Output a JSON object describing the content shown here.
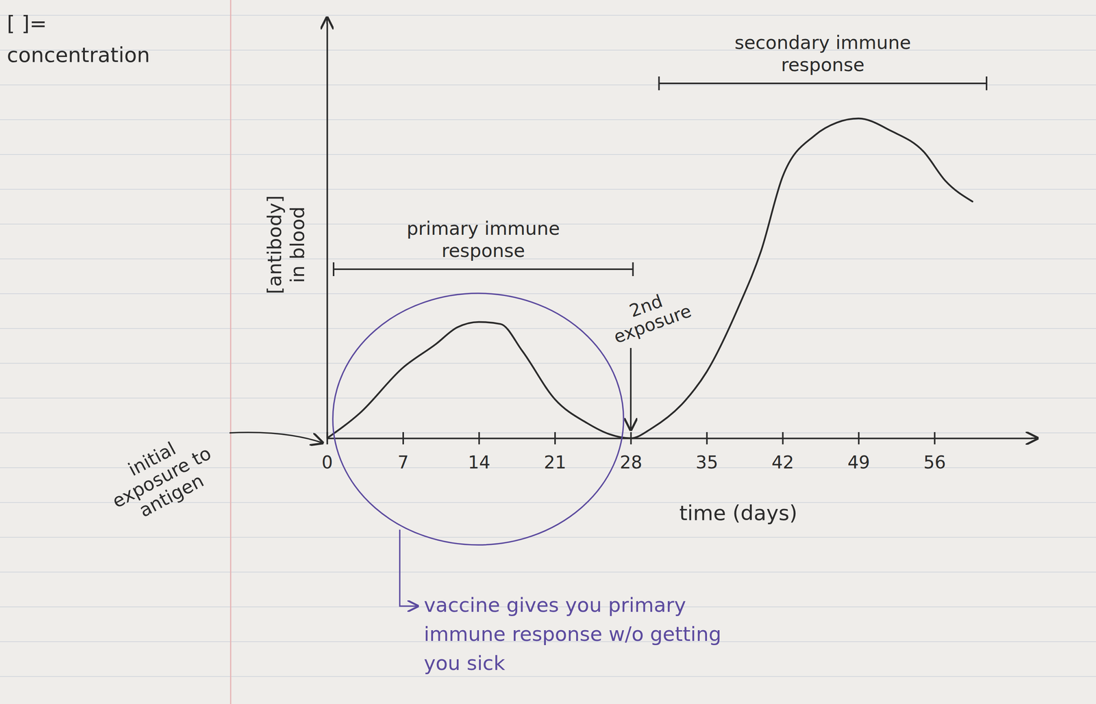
{
  "chart_data": {
    "type": "line",
    "x_label": "time (days)",
    "y_label": "[antibody] in blood",
    "x": [
      0,
      3,
      7,
      10,
      12,
      14,
      16,
      18,
      21,
      24,
      26,
      28,
      30,
      33,
      35,
      38,
      40,
      42,
      45,
      47,
      49,
      52,
      55,
      57,
      59.5
    ],
    "values": [
      0,
      6,
      17,
      22.6,
      26.7,
      28,
      27.5,
      21,
      9.4,
      3.6,
      1,
      0,
      2.5,
      9,
      16,
      32,
      45,
      63,
      73,
      76,
      77,
      74,
      69,
      62,
      57
    ],
    "color": "#2b2b2b",
    "xlim": [
      0,
      65
    ],
    "ylim": [
      0,
      100
    ],
    "xticks": [
      0,
      7,
      14,
      21,
      28,
      35,
      42,
      49,
      56
    ],
    "yticks": [],
    "tick_labels": "x",
    "grid": false,
    "annotations": {
      "concentration_key": {
        "text": "[ ]= concentration"
      },
      "initial_exposure": {
        "text": "initial exposure to antigen",
        "x": 0
      },
      "second_exposure": {
        "text": "2nd exposure",
        "x": 28
      },
      "primary_response": {
        "text": "primary immune response",
        "x_range": [
          0.6,
          28.2
        ]
      },
      "secondary_response": {
        "text": "secondary immune response",
        "x_range": [
          30.6,
          60.8
        ]
      },
      "vaccine_note": {
        "text": "vaccine gives you primary immune response w/o getting you sick",
        "color": "#5b4a9e"
      }
    }
  }
}
